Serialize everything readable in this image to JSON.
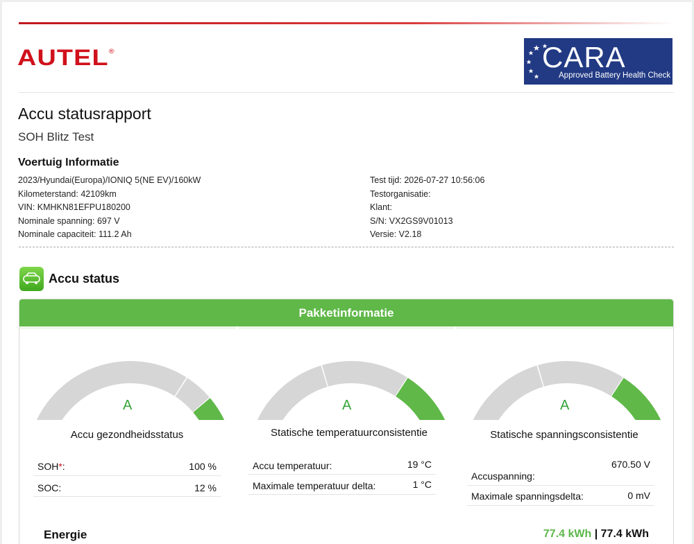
{
  "brand": {
    "logo_text": "AUTEL",
    "logo_mark": "®"
  },
  "cara": {
    "word": "CARA",
    "sub": "Approved Battery Health Check"
  },
  "report": {
    "title": "Accu statusrapport",
    "subtitle": "SOH Blitz Test"
  },
  "vehicle": {
    "heading": "Voertuig Informatie",
    "left": [
      "2023/Hyundai(Europa)/IONIQ 5(NE EV)/160kW",
      "Kilometerstand: 42109km",
      "VIN: KMHKN81EFPU180200",
      "Nominale spanning: 697 V",
      "Nominale capaciteit: 111.2 Ah"
    ],
    "right": [
      "Test tijd: 2026-07-27 10:56:06",
      "Testorganisatie:",
      "Klant:",
      "S/N: VX2GS9V01013",
      "Versie: V2.18"
    ]
  },
  "status": {
    "heading": "Accu status",
    "icon": "battery-car-icon",
    "panel_title": "Pakketinformatie",
    "accent": "#5fb848",
    "gauges": [
      {
        "grade": "A",
        "title": "Accu gezondheidsstatus",
        "level": 0.88,
        "rows": [
          {
            "label": "SOH",
            "mark": "*",
            "suffix": ":",
            "value": "100 %"
          },
          {
            "label": "SOC:",
            "mark": "",
            "suffix": "",
            "value": "12 %"
          }
        ]
      },
      {
        "grade": "A",
        "title": "Statische temperatuurconsistentie",
        "level": 0.75,
        "rows": [
          {
            "label": "Accu temperatuur:",
            "mark": "",
            "suffix": "",
            "value": "19 °C"
          },
          {
            "label": "Maximale temperatuur delta:",
            "mark": "",
            "suffix": "",
            "value": "1 °C"
          }
        ]
      },
      {
        "grade": "A",
        "title": "Statische spanningsconsistentie",
        "level": 0.75,
        "rows": [
          {
            "label": "Accuspanning:",
            "mark": "",
            "suffix": "",
            "value": "670.50 V"
          },
          {
            "label": "Maximale spanningsdelta:",
            "mark": "",
            "suffix": "",
            "value": "0 mV"
          }
        ]
      }
    ]
  },
  "energy": {
    "label": "Energie",
    "value_green": "77.4 kWh",
    "separator": "|",
    "value_total": "77.4 kWh"
  }
}
